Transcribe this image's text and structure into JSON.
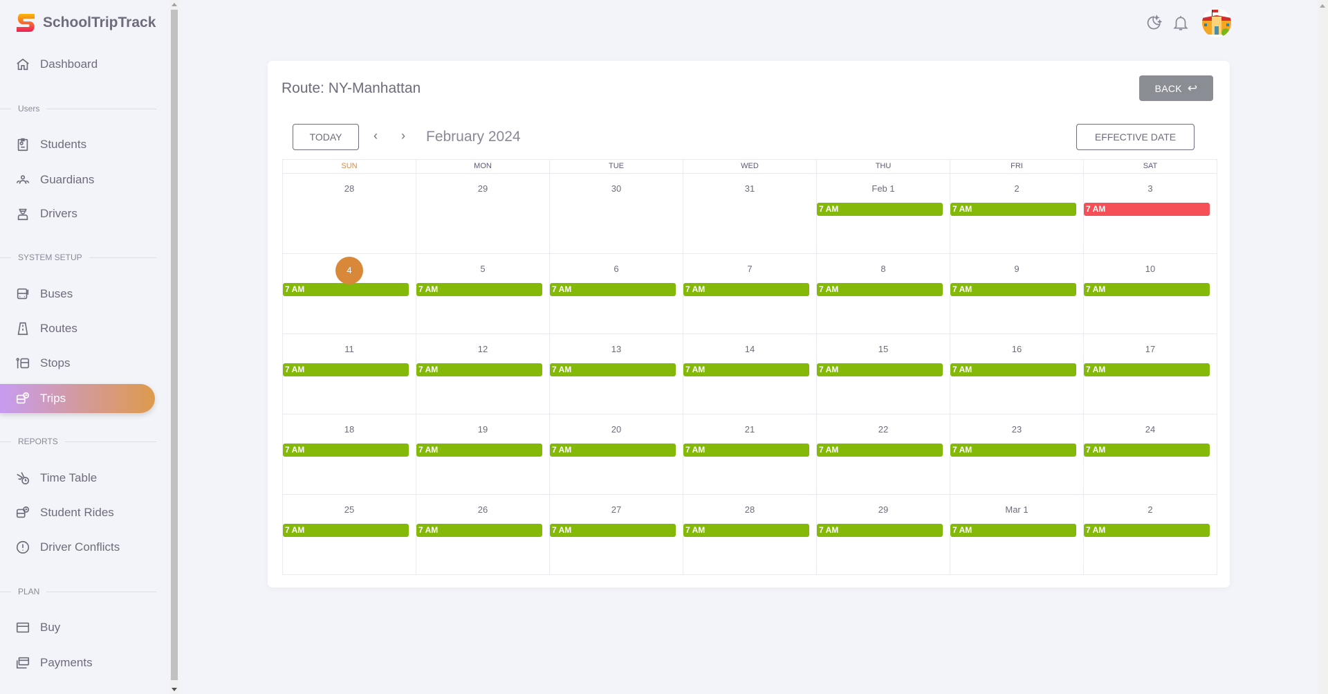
{
  "brand": {
    "name": "SchoolTripTrack"
  },
  "sidebar": {
    "dashboard": "Dashboard",
    "sections": {
      "users": "Users",
      "system": "SYSTEM SETUP",
      "reports": "REPORTS",
      "plan": "PLAN"
    },
    "items": [
      {
        "label": "Dashboard",
        "icon": "home-icon"
      },
      {
        "label": "Students",
        "icon": "id-badge-icon"
      },
      {
        "label": "Guardians",
        "icon": "users-icon"
      },
      {
        "label": "Drivers",
        "icon": "driver-icon"
      },
      {
        "label": "Buses",
        "icon": "bus-icon"
      },
      {
        "label": "Routes",
        "icon": "road-icon"
      },
      {
        "label": "Stops",
        "icon": "bus-stop-icon"
      },
      {
        "label": "Trips",
        "icon": "bus-clock-icon",
        "active": true
      },
      {
        "label": "Time Table",
        "icon": "plane-clock-icon"
      },
      {
        "label": "Student Rides",
        "icon": "bus-clock-icon"
      },
      {
        "label": "Driver Conflicts",
        "icon": "alert-circle-icon"
      },
      {
        "label": "Buy",
        "icon": "credit-card-icon"
      },
      {
        "label": "Payments",
        "icon": "payments-icon"
      }
    ]
  },
  "header": {
    "icons": [
      "moon-stars-icon",
      "bell-icon",
      "school-avatar"
    ]
  },
  "main": {
    "title": "Route: NY-Manhattan",
    "back_label": "BACK",
    "today_label": "TODAY",
    "month": "February 2024",
    "effective_label": "EFFECTIVE DATE"
  },
  "calendar": {
    "weekdays": [
      "SUN",
      "MON",
      "TUE",
      "WED",
      "THU",
      "FRI",
      "SAT"
    ],
    "colors": {
      "ok": "#84b90a",
      "alert": "#f54f57",
      "today": "#d9883a"
    },
    "today": "4",
    "weeks": [
      [
        {
          "d": "28"
        },
        {
          "d": "29"
        },
        {
          "d": "30"
        },
        {
          "d": "31"
        },
        {
          "d": "Feb 1",
          "e": "7 AM"
        },
        {
          "d": "2",
          "e": "7 AM"
        },
        {
          "d": "3",
          "e": "7 AM",
          "alert": true
        }
      ],
      [
        {
          "d": "4",
          "e": "7 AM"
        },
        {
          "d": "5",
          "e": "7 AM"
        },
        {
          "d": "6",
          "e": "7 AM"
        },
        {
          "d": "7",
          "e": "7 AM"
        },
        {
          "d": "8",
          "e": "7 AM"
        },
        {
          "d": "9",
          "e": "7 AM"
        },
        {
          "d": "10",
          "e": "7 AM"
        }
      ],
      [
        {
          "d": "11",
          "e": "7 AM"
        },
        {
          "d": "12",
          "e": "7 AM"
        },
        {
          "d": "13",
          "e": "7 AM"
        },
        {
          "d": "14",
          "e": "7 AM"
        },
        {
          "d": "15",
          "e": "7 AM"
        },
        {
          "d": "16",
          "e": "7 AM"
        },
        {
          "d": "17",
          "e": "7 AM"
        }
      ],
      [
        {
          "d": "18",
          "e": "7 AM"
        },
        {
          "d": "19",
          "e": "7 AM"
        },
        {
          "d": "20",
          "e": "7 AM"
        },
        {
          "d": "21",
          "e": "7 AM"
        },
        {
          "d": "22",
          "e": "7 AM"
        },
        {
          "d": "23",
          "e": "7 AM"
        },
        {
          "d": "24",
          "e": "7 AM"
        }
      ],
      [
        {
          "d": "25",
          "e": "7 AM"
        },
        {
          "d": "26",
          "e": "7 AM"
        },
        {
          "d": "27",
          "e": "7 AM"
        },
        {
          "d": "28",
          "e": "7 AM"
        },
        {
          "d": "29",
          "e": "7 AM"
        },
        {
          "d": "Mar 1",
          "e": "7 AM"
        },
        {
          "d": "2",
          "e": "7 AM"
        }
      ]
    ]
  }
}
